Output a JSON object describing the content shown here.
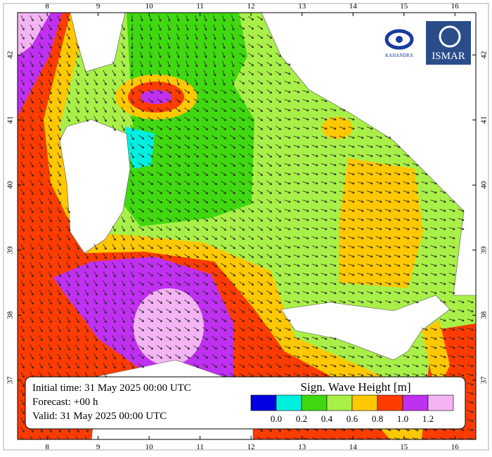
{
  "map": {
    "lon_ticks": [
      8,
      9,
      10,
      11,
      12,
      13,
      14,
      15,
      16
    ],
    "lat_ticks": [
      37,
      38,
      39,
      40,
      41,
      42
    ],
    "lon_range": [
      7.42,
      16.41
    ],
    "lat_range": [
      36.09,
      42.65
    ]
  },
  "info": {
    "lines": [
      "Initial time: 31 May 2025 00:00 UTC",
      "Forecast: +00 h",
      "Valid: 31 May 2025 00:00 UTC"
    ]
  },
  "legend": {
    "title": "Sign. Wave Height [m]",
    "colors": [
      "#0000e0",
      "#00f0e0",
      "#40d810",
      "#a8f048",
      "#ffc800",
      "#ff3c00",
      "#c030f0",
      "#f4b4f4"
    ],
    "labels": [
      "0.0",
      "0.2",
      "0.4",
      "0.6",
      "0.8",
      "1.0",
      "1.2"
    ]
  },
  "logos": [
    "KAHANDRA",
    "ISMAR"
  ]
}
